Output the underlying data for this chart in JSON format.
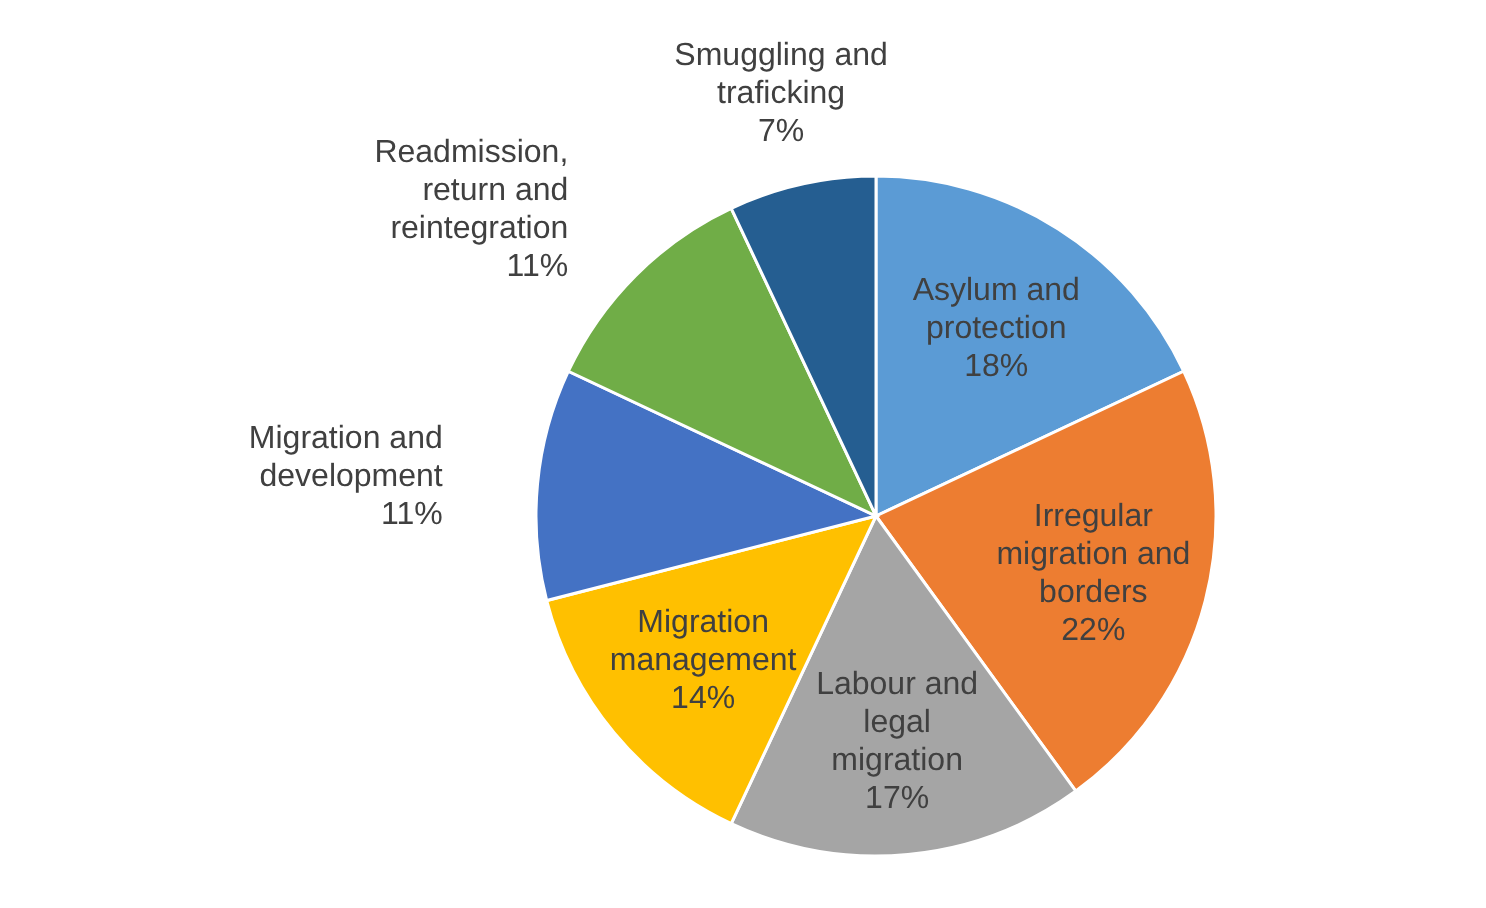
{
  "chart_data": {
    "type": "pie",
    "categories": [
      "Asylum and protection",
      "Irregular migration and borders",
      "Labour and legal migration",
      "Migration management",
      "Migration and development",
      "Readmission, return and reintegration",
      "Smuggling and traficking"
    ],
    "values": [
      18,
      22,
      17,
      14,
      11,
      11,
      7
    ],
    "colors": [
      "#5b9bd5",
      "#ed7d31",
      "#a5a5a5",
      "#ffc000",
      "#4472c4",
      "#70ad47",
      "#255e91"
    ],
    "value_labels": [
      "18%",
      "22%",
      "17%",
      "14%",
      "11%",
      "11%",
      "7%"
    ]
  }
}
